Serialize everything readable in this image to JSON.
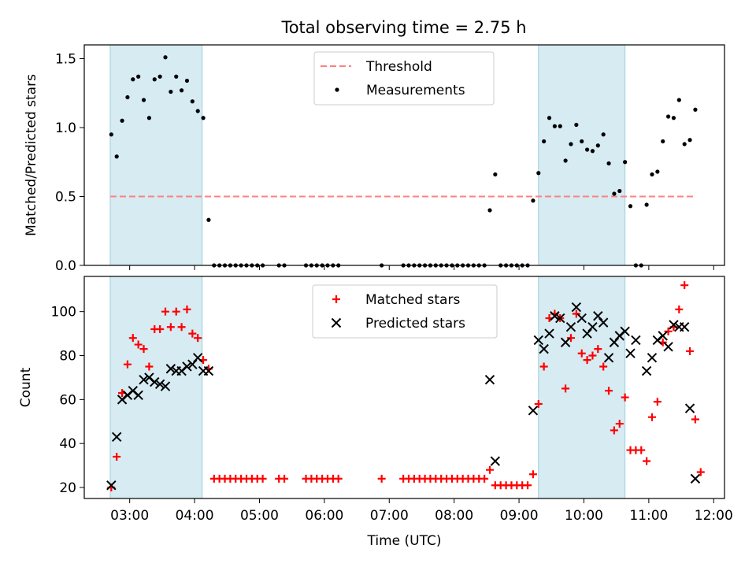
{
  "title": "Total observing time = 2.75 h",
  "chart_data": [
    {
      "type": "scatter",
      "ylabel": "Matched/Predicted stars",
      "ylim": [
        0,
        1.6
      ],
      "yticks": [
        0.0,
        0.5,
        1.0,
        1.5
      ],
      "ytick_labels": [
        "0.0",
        "0.5",
        "1.0",
        "1.5"
      ],
      "shaded_regions": [
        [
          "02:42",
          "04:07"
        ],
        [
          "09:18",
          "10:38"
        ]
      ],
      "legend": {
        "placement": "upper center",
        "entries": [
          "Threshold",
          "Measurements"
        ]
      },
      "threshold": {
        "name": "Threshold",
        "value": 0.5,
        "x_range": [
          "02:42",
          "11:42"
        ],
        "color": "#ff8080",
        "style": "dashed"
      },
      "series": [
        {
          "name": "Measurements",
          "color": "#000000",
          "marker": "dot",
          "points": [
            [
              "02:43",
              0.95
            ],
            [
              "02:48",
              0.79
            ],
            [
              "02:53",
              1.05
            ],
            [
              "02:58",
              1.22
            ],
            [
              "03:03",
              1.35
            ],
            [
              "03:08",
              1.37
            ],
            [
              "03:13",
              1.2
            ],
            [
              "03:18",
              1.07
            ],
            [
              "03:23",
              1.35
            ],
            [
              "03:28",
              1.37
            ],
            [
              "03:33",
              1.51
            ],
            [
              "03:38",
              1.26
            ],
            [
              "03:43",
              1.37
            ],
            [
              "03:48",
              1.27
            ],
            [
              "03:53",
              1.34
            ],
            [
              "03:58",
              1.19
            ],
            [
              "04:03",
              1.12
            ],
            [
              "04:08",
              1.07
            ],
            [
              "04:13",
              0.33
            ],
            [
              "04:18",
              0
            ],
            [
              "04:23",
              0
            ],
            [
              "04:28",
              0
            ],
            [
              "04:33",
              0
            ],
            [
              "04:38",
              0
            ],
            [
              "04:43",
              0
            ],
            [
              "04:48",
              0
            ],
            [
              "04:53",
              0
            ],
            [
              "04:58",
              0
            ],
            [
              "05:03",
              0
            ],
            [
              "05:18",
              0
            ],
            [
              "05:23",
              0
            ],
            [
              "05:43",
              0
            ],
            [
              "05:48",
              0
            ],
            [
              "05:53",
              0
            ],
            [
              "05:58",
              0
            ],
            [
              "06:03",
              0
            ],
            [
              "06:08",
              0
            ],
            [
              "06:13",
              0
            ],
            [
              "06:53",
              0
            ],
            [
              "07:13",
              0
            ],
            [
              "07:18",
              0
            ],
            [
              "07:23",
              0
            ],
            [
              "07:28",
              0
            ],
            [
              "07:33",
              0
            ],
            [
              "07:38",
              0
            ],
            [
              "07:43",
              0
            ],
            [
              "07:48",
              0
            ],
            [
              "07:53",
              0
            ],
            [
              "07:58",
              0
            ],
            [
              "08:03",
              0
            ],
            [
              "08:08",
              0
            ],
            [
              "08:13",
              0
            ],
            [
              "08:18",
              0
            ],
            [
              "08:23",
              0
            ],
            [
              "08:28",
              0
            ],
            [
              "08:33",
              0.4
            ],
            [
              "08:38",
              0.66
            ],
            [
              "08:43",
              0
            ],
            [
              "08:48",
              0
            ],
            [
              "08:53",
              0
            ],
            [
              "08:58",
              0
            ],
            [
              "09:03",
              0
            ],
            [
              "09:08",
              0
            ],
            [
              "09:13",
              0.47
            ],
            [
              "09:18",
              0.67
            ],
            [
              "09:23",
              0.9
            ],
            [
              "09:28",
              1.07
            ],
            [
              "09:33",
              1.01
            ],
            [
              "09:38",
              1.01
            ],
            [
              "09:43",
              0.76
            ],
            [
              "09:48",
              0.88
            ],
            [
              "09:53",
              1.02
            ],
            [
              "09:58",
              0.9
            ],
            [
              "10:03",
              0.84
            ],
            [
              "10:08",
              0.83
            ],
            [
              "10:13",
              0.87
            ],
            [
              "10:18",
              0.95
            ],
            [
              "10:23",
              0.74
            ],
            [
              "10:28",
              0.52
            ],
            [
              "10:33",
              0.54
            ],
            [
              "10:38",
              0.75
            ],
            [
              "10:43",
              0.43
            ],
            [
              "10:48",
              0
            ],
            [
              "10:53",
              0
            ],
            [
              "10:58",
              0.44
            ],
            [
              "11:03",
              0.66
            ],
            [
              "11:08",
              0.68
            ],
            [
              "11:13",
              0.9
            ],
            [
              "11:18",
              1.08
            ],
            [
              "11:23",
              1.07
            ],
            [
              "11:28",
              1.2
            ],
            [
              "11:33",
              0.88
            ],
            [
              "11:38",
              0.91
            ],
            [
              "11:43",
              1.13
            ]
          ]
        }
      ]
    },
    {
      "type": "scatter",
      "xlabel": "Time (UTC)",
      "ylabel": "Count",
      "xlim": [
        "02:18",
        "12:10"
      ],
      "xticks": [
        "03:00",
        "04:00",
        "05:00",
        "06:00",
        "07:00",
        "08:00",
        "09:00",
        "10:00",
        "11:00",
        "12:00"
      ],
      "ylim": [
        15,
        116
      ],
      "yticks": [
        20,
        40,
        60,
        80,
        100
      ],
      "ytick_labels": [
        "20",
        "40",
        "60",
        "80",
        "100"
      ],
      "shaded_regions": [
        [
          "02:42",
          "04:07"
        ],
        [
          "09:18",
          "10:38"
        ]
      ],
      "legend": {
        "placement": "upper center",
        "entries": [
          "Matched stars",
          "Predicted stars"
        ]
      },
      "series": [
        {
          "name": "Matched stars",
          "color": "#ff0000",
          "marker": "plus",
          "points": [
            [
              "02:43",
              20
            ],
            [
              "02:48",
              34
            ],
            [
              "02:53",
              63
            ],
            [
              "02:58",
              76
            ],
            [
              "03:03",
              88
            ],
            [
              "03:08",
              85
            ],
            [
              "03:13",
              83
            ],
            [
              "03:18",
              75
            ],
            [
              "03:23",
              92
            ],
            [
              "03:28",
              92
            ],
            [
              "03:33",
              100
            ],
            [
              "03:38",
              93
            ],
            [
              "03:43",
              100
            ],
            [
              "03:48",
              93
            ],
            [
              "03:53",
              101
            ],
            [
              "03:58",
              90
            ],
            [
              "04:03",
              88
            ],
            [
              "04:08",
              78
            ],
            [
              "04:13",
              74
            ],
            [
              "04:18",
              24
            ],
            [
              "04:23",
              24
            ],
            [
              "04:28",
              24
            ],
            [
              "04:33",
              24
            ],
            [
              "04:38",
              24
            ],
            [
              "04:43",
              24
            ],
            [
              "04:48",
              24
            ],
            [
              "04:53",
              24
            ],
            [
              "04:58",
              24
            ],
            [
              "05:03",
              24
            ],
            [
              "05:18",
              24
            ],
            [
              "05:23",
              24
            ],
            [
              "05:43",
              24
            ],
            [
              "05:48",
              24
            ],
            [
              "05:53",
              24
            ],
            [
              "05:58",
              24
            ],
            [
              "06:03",
              24
            ],
            [
              "06:08",
              24
            ],
            [
              "06:13",
              24
            ],
            [
              "06:53",
              24
            ],
            [
              "07:13",
              24
            ],
            [
              "07:18",
              24
            ],
            [
              "07:23",
              24
            ],
            [
              "07:28",
              24
            ],
            [
              "07:33",
              24
            ],
            [
              "07:38",
              24
            ],
            [
              "07:43",
              24
            ],
            [
              "07:48",
              24
            ],
            [
              "07:53",
              24
            ],
            [
              "07:58",
              24
            ],
            [
              "08:03",
              24
            ],
            [
              "08:08",
              24
            ],
            [
              "08:13",
              24
            ],
            [
              "08:18",
              24
            ],
            [
              "08:23",
              24
            ],
            [
              "08:28",
              24
            ],
            [
              "08:33",
              28
            ],
            [
              "08:38",
              21
            ],
            [
              "08:43",
              21
            ],
            [
              "08:48",
              21
            ],
            [
              "08:53",
              21
            ],
            [
              "08:58",
              21
            ],
            [
              "09:03",
              21
            ],
            [
              "09:08",
              21
            ],
            [
              "09:13",
              26
            ],
            [
              "09:18",
              58
            ],
            [
              "09:23",
              75
            ],
            [
              "09:28",
              97
            ],
            [
              "09:33",
              99
            ],
            [
              "09:38",
              97
            ],
            [
              "09:43",
              65
            ],
            [
              "09:48",
              88
            ],
            [
              "09:53",
              99
            ],
            [
              "09:58",
              81
            ],
            [
              "10:03",
              78
            ],
            [
              "10:08",
              80
            ],
            [
              "10:13",
              83
            ],
            [
              "10:18",
              75
            ],
            [
              "10:23",
              64
            ],
            [
              "10:28",
              46
            ],
            [
              "10:33",
              49
            ],
            [
              "10:38",
              61
            ],
            [
              "10:43",
              37
            ],
            [
              "10:48",
              37
            ],
            [
              "10:53",
              37
            ],
            [
              "10:58",
              32
            ],
            [
              "11:03",
              52
            ],
            [
              "11:08",
              59
            ],
            [
              "11:13",
              86
            ],
            [
              "11:18",
              91
            ],
            [
              "11:23",
              93
            ],
            [
              "11:28",
              101
            ],
            [
              "11:33",
              112
            ],
            [
              "11:38",
              82
            ],
            [
              "11:43",
              51
            ],
            [
              "11:48",
              27
            ]
          ]
        },
        {
          "name": "Predicted stars",
          "color": "#000000",
          "marker": "x",
          "points": [
            [
              "02:43",
              21
            ],
            [
              "02:48",
              43
            ],
            [
              "02:53",
              60
            ],
            [
              "02:58",
              62
            ],
            [
              "03:03",
              64
            ],
            [
              "03:08",
              62
            ],
            [
              "03:13",
              69
            ],
            [
              "03:18",
              70
            ],
            [
              "03:23",
              68
            ],
            [
              "03:28",
              67
            ],
            [
              "03:33",
              66
            ],
            [
              "03:38",
              74
            ],
            [
              "03:43",
              73
            ],
            [
              "03:48",
              73
            ],
            [
              "03:53",
              75
            ],
            [
              "03:58",
              76
            ],
            [
              "04:03",
              79
            ],
            [
              "04:08",
              73
            ],
            [
              "04:13",
              73
            ],
            [
              "08:33",
              69
            ],
            [
              "08:38",
              32
            ],
            [
              "09:13",
              55
            ],
            [
              "09:18",
              87
            ],
            [
              "09:23",
              83
            ],
            [
              "09:28",
              90
            ],
            [
              "09:33",
              98
            ],
            [
              "09:38",
              97
            ],
            [
              "09:43",
              86
            ],
            [
              "09:48",
              93
            ],
            [
              "09:53",
              102
            ],
            [
              "09:58",
              97
            ],
            [
              "10:03",
              90
            ],
            [
              "10:08",
              93
            ],
            [
              "10:13",
              98
            ],
            [
              "10:18",
              95
            ],
            [
              "10:23",
              79
            ],
            [
              "10:28",
              86
            ],
            [
              "10:33",
              89
            ],
            [
              "10:38",
              91
            ],
            [
              "10:43",
              81
            ],
            [
              "10:48",
              87
            ],
            [
              "10:58",
              73
            ],
            [
              "11:03",
              79
            ],
            [
              "11:08",
              87
            ],
            [
              "11:13",
              89
            ],
            [
              "11:18",
              84
            ],
            [
              "11:23",
              94
            ],
            [
              "11:28",
              93
            ],
            [
              "11:33",
              93
            ],
            [
              "11:38",
              56
            ],
            [
              "11:43",
              24
            ]
          ]
        }
      ]
    }
  ]
}
